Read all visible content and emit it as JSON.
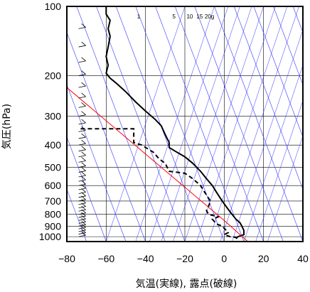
{
  "chart_data": {
    "type": "line",
    "title": "",
    "xlabel": "気温(実線), 露点(破線)",
    "ylabel": "気圧(hPa)",
    "xlim": [
      -80,
      40
    ],
    "ylim": [
      1050,
      100
    ],
    "y_scale": "log",
    "x_ticks": [
      "−80",
      "−60",
      "−40",
      "−20",
      "0",
      "20",
      "40"
    ],
    "y_ticks": [
      "100",
      "200",
      "300",
      "400",
      "500",
      "600",
      "700",
      "800",
      "900",
      "1000"
    ],
    "mixing_ratio_labels": [
      "1",
      "5",
      "10",
      "15",
      "20g"
    ],
    "series": [
      {
        "style": "solid",
        "color": "#000000",
        "points": [
          [
            -60,
            100
          ],
          [
            -60,
            108
          ],
          [
            -58,
            115
          ],
          [
            -59,
            125
          ],
          [
            -58,
            135
          ],
          [
            -59,
            150
          ],
          [
            -60,
            165
          ],
          [
            -59,
            180
          ],
          [
            -60,
            195
          ],
          [
            -58,
            205
          ],
          [
            -55,
            215
          ],
          [
            -50,
            235
          ],
          [
            -45,
            260
          ],
          [
            -40,
            285
          ],
          [
            -35,
            310
          ],
          [
            -32,
            330
          ],
          [
            -30,
            360
          ],
          [
            -28,
            390
          ],
          [
            -28,
            410
          ],
          [
            -25,
            425
          ],
          [
            -20,
            450
          ],
          [
            -16,
            480
          ],
          [
            -12,
            520
          ],
          [
            -9,
            560
          ],
          [
            -6,
            600
          ],
          [
            -4,
            640
          ],
          [
            -2,
            680
          ],
          [
            0,
            720
          ],
          [
            2,
            760
          ],
          [
            4,
            800
          ],
          [
            6,
            840
          ],
          [
            8,
            870
          ],
          [
            9,
            900
          ],
          [
            10,
            940
          ],
          [
            10,
            980
          ],
          [
            7,
            1000
          ],
          [
            6,
            1020
          ]
        ]
      },
      {
        "style": "dashed",
        "color": "#000000",
        "points": [
          [
            -73,
            340
          ],
          [
            -46,
            340
          ],
          [
            -46,
            390
          ],
          [
            -42,
            400
          ],
          [
            -36,
            430
          ],
          [
            -33,
            460
          ],
          [
            -30,
            480
          ],
          [
            -28,
            520
          ],
          [
            -20,
            530
          ],
          [
            -16,
            560
          ],
          [
            -12,
            600
          ],
          [
            -10,
            640
          ],
          [
            -8,
            680
          ],
          [
            -7,
            700
          ],
          [
            -8,
            740
          ],
          [
            -9,
            770
          ],
          [
            -8,
            800
          ],
          [
            -3,
            820
          ],
          [
            -6,
            840
          ],
          [
            -4,
            880
          ],
          [
            -1,
            900
          ],
          [
            2,
            960
          ],
          [
            0,
            980
          ],
          [
            3,
            1000
          ],
          [
            7,
            1010
          ]
        ]
      },
      {
        "style": "solid",
        "color": "#ff0000",
        "points": [
          [
            -80,
            225
          ],
          [
            0,
            850
          ],
          [
            12,
            1050
          ]
        ]
      }
    ],
    "wind_barbs": "shown along the left edge at x=-74, pressure levels 100-1000",
    "colors": {
      "frame": "#000000",
      "grid": "#000000",
      "dry_adiabats": "#3333ff",
      "mixing_ratio": "#3333ff",
      "temperature": "#000000",
      "dewpoint": "#000000",
      "parcel": "#ff0000"
    }
  }
}
